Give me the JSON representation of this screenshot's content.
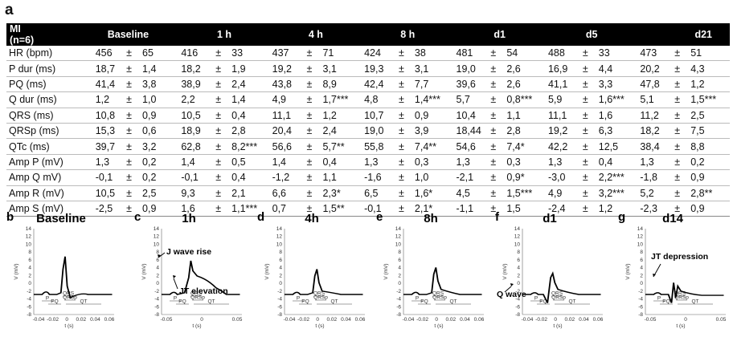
{
  "panel_a_label": "a",
  "table": {
    "mi_label": "MI",
    "n_label": "(n=6)",
    "columns": [
      "Baseline",
      "1 h",
      "4 h",
      "8 h",
      "d1",
      "d5",
      "d21"
    ],
    "rows": [
      {
        "label": "HR (bpm)",
        "cells": [
          [
            "456",
            "65"
          ],
          [
            "416",
            "33"
          ],
          [
            "437",
            "71"
          ],
          [
            "424",
            "38"
          ],
          [
            "481",
            "54"
          ],
          [
            "488",
            "33"
          ],
          [
            "473",
            "51"
          ]
        ]
      },
      {
        "label": "P dur (ms)",
        "cells": [
          [
            "18,7",
            "1,4"
          ],
          [
            "18,2",
            "1,9"
          ],
          [
            "19,2",
            "3,1"
          ],
          [
            "19,3",
            "3,1"
          ],
          [
            "19,0",
            "2,6"
          ],
          [
            "16,9",
            "4,4"
          ],
          [
            "20,2",
            "4,3"
          ]
        ]
      },
      {
        "label": "PQ (ms)",
        "cells": [
          [
            "41,4",
            "3,8"
          ],
          [
            "38,9",
            "2,4"
          ],
          [
            "43,8",
            "8,9"
          ],
          [
            "42,4",
            "7,7"
          ],
          [
            "39,6",
            "2,6"
          ],
          [
            "41,1",
            "3,3"
          ],
          [
            "47,8",
            "1,2"
          ]
        ]
      },
      {
        "label": "Q dur (ms)",
        "cells": [
          [
            "1,2",
            "1,0"
          ],
          [
            "2,2",
            "1,4"
          ],
          [
            "4,9",
            "1,7***"
          ],
          [
            "4,8",
            "1,4***"
          ],
          [
            "5,7",
            "0,8***"
          ],
          [
            "5,9",
            "1,6***"
          ],
          [
            "5,1",
            "1,5***"
          ]
        ]
      },
      {
        "label": "QRS (ms)",
        "cells": [
          [
            "10,8",
            "0,9"
          ],
          [
            "10,5",
            "0,4"
          ],
          [
            "11,1",
            "1,2"
          ],
          [
            "10,7",
            "0,9"
          ],
          [
            "10,4",
            "1,1"
          ],
          [
            "11,1",
            "1,6"
          ],
          [
            "11,2",
            "2,5"
          ]
        ]
      },
      {
        "label": "QRSp (ms)",
        "cells": [
          [
            "15,3",
            "0,6"
          ],
          [
            "18,9",
            "2,8"
          ],
          [
            "20,4",
            "2,4"
          ],
          [
            "19,0",
            "3,9"
          ],
          [
            "18,44",
            "2,8"
          ],
          [
            "19,2",
            "6,3"
          ],
          [
            "18,2",
            "7,5"
          ]
        ]
      },
      {
        "label": "QTc (ms)",
        "cells": [
          [
            "39,7",
            "3,2"
          ],
          [
            "62,8",
            "8,2***"
          ],
          [
            "56,6",
            "5,7**"
          ],
          [
            "55,8",
            "7,4**"
          ],
          [
            "54,6",
            "7,4*"
          ],
          [
            "42,2",
            "12,5"
          ],
          [
            "38,4",
            "8,8"
          ]
        ]
      },
      {
        "label": "Amp P (mV)",
        "cells": [
          [
            "1,3",
            "0,2"
          ],
          [
            "1,4",
            "0,5"
          ],
          [
            "1,4",
            "0,4"
          ],
          [
            "1,3",
            "0,3"
          ],
          [
            "1,3",
            "0,3"
          ],
          [
            "1,3",
            "0,4"
          ],
          [
            "1,3",
            "0,2"
          ]
        ]
      },
      {
        "label": "Amp Q mV)",
        "cells": [
          [
            "-0,1",
            "0,2"
          ],
          [
            "-0,1",
            "0,4"
          ],
          [
            "-1,2",
            "1,1"
          ],
          [
            "-1,6",
            "1,0"
          ],
          [
            "-2,1",
            "0,9*"
          ],
          [
            "-3,0",
            "2,2***"
          ],
          [
            "-1,8",
            "0,9"
          ]
        ]
      },
      {
        "label": "Amp R (mV)",
        "cells": [
          [
            "10,5",
            "2,5"
          ],
          [
            "9,3",
            "2,1"
          ],
          [
            "6,6",
            "2,3*"
          ],
          [
            "6,5",
            "1,6*"
          ],
          [
            "4,5",
            "1,5***"
          ],
          [
            "4,9",
            "3,2***"
          ],
          [
            "5,2",
            "2,8**"
          ]
        ]
      },
      {
        "label": "Amp S (mV)",
        "cells": [
          [
            "-2,5",
            "0,9"
          ],
          [
            "1,6",
            "1,1***"
          ],
          [
            "0,7",
            "1,5**"
          ],
          [
            "-0,1",
            "2,1*"
          ],
          [
            "-1,1",
            "1,5"
          ],
          [
            "-2,4",
            "1,2"
          ],
          [
            "-2,3",
            "0,9"
          ]
        ]
      }
    ],
    "pm_symbol": "±"
  },
  "ecg_panels": [
    {
      "letter": "b",
      "title": "Baseline",
      "xticks": [
        "-0.04",
        "-0.02",
        "0",
        "0.02",
        "0.04",
        "0.06"
      ],
      "annotations": []
    },
    {
      "letter": "c",
      "title": "1h",
      "xticks": [
        "-0.05",
        "0",
        "0.05"
      ],
      "annotations": [
        "J wave rise",
        "JT elevation"
      ]
    },
    {
      "letter": "d",
      "title": "4h",
      "xticks": [
        "-0.04",
        "-0.02",
        "0",
        "0.02",
        "0.04",
        "0.06"
      ],
      "annotations": []
    },
    {
      "letter": "e",
      "title": "8h",
      "xticks": [
        "-0.04",
        "-0.02",
        "0",
        "0.02",
        "0.04",
        "0.06"
      ],
      "annotations": []
    },
    {
      "letter": "f",
      "title": "d1",
      "xticks": [
        "-0.04",
        "-0.02",
        "0",
        "0.02",
        "0.04",
        "0.06"
      ],
      "annotations": [
        "Q wave"
      ]
    },
    {
      "letter": "g",
      "title": "d14",
      "xticks": [
        "-0.05",
        "0",
        "0.05"
      ],
      "annotations": [
        "JT depression"
      ]
    }
  ],
  "ecg_common": {
    "ylabel": "V (mV)",
    "xlabel": "t (s)",
    "yticks": [
      "14",
      "12",
      "10",
      "8",
      "6",
      "4",
      "2",
      "0",
      "-2",
      "-4",
      "-6",
      "-8"
    ],
    "interval_labels": [
      "P",
      "PQ",
      "QRS",
      "QRSp",
      "QT"
    ]
  }
}
